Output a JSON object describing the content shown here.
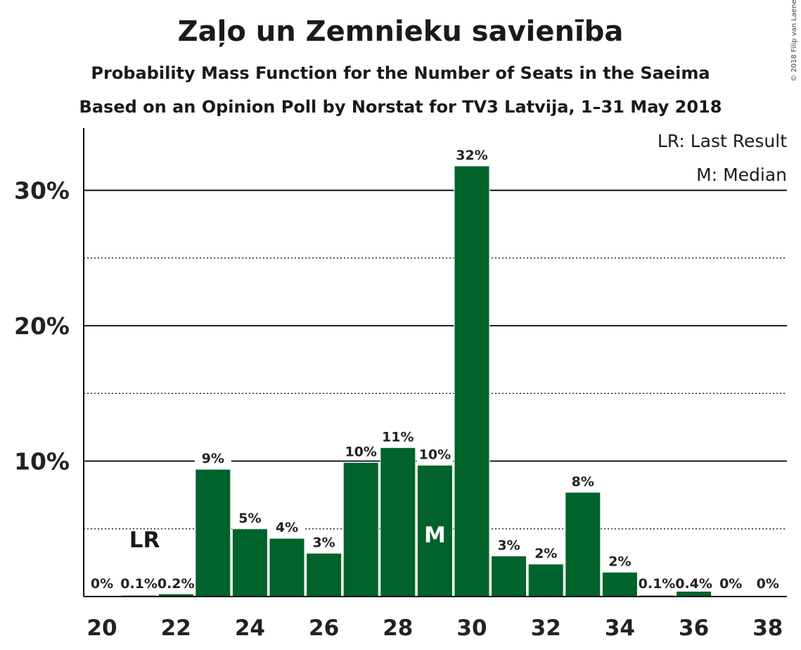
{
  "chart_data": {
    "type": "bar",
    "title": "Zaļo un Zemnieku savienība",
    "subtitle": "Probability Mass Function for the Number of Seats in the Saeima",
    "subtitle2": "Based on an Opinion Poll by Norstat for TV3 Latvija, 1–31 May 2018",
    "copyright": "© 2018 Filip van Laenen",
    "categories": [
      20,
      21,
      22,
      23,
      24,
      25,
      26,
      27,
      28,
      29,
      30,
      31,
      32,
      33,
      34,
      35,
      36,
      37,
      38
    ],
    "values": [
      0,
      0.1,
      0.2,
      9.4,
      5.0,
      4.3,
      3.2,
      9.9,
      11.0,
      9.7,
      31.8,
      3.0,
      2.4,
      7.7,
      1.8,
      0.1,
      0.4,
      0,
      0
    ],
    "value_labels": [
      "0%",
      "0.1%",
      "0.2%",
      "9%",
      "5%",
      "4%",
      "3%",
      "10%",
      "11%",
      "10%",
      "32%",
      "3%",
      "2%",
      "8%",
      "2%",
      "0.1%",
      "0.4%",
      "0%",
      "0%"
    ],
    "x_tick_labels": [
      "20",
      "22",
      "24",
      "26",
      "28",
      "30",
      "32",
      "34",
      "36",
      "38"
    ],
    "y_tick_labels": [
      "10%",
      "20%",
      "30%"
    ],
    "ylim": [
      0,
      34.6
    ],
    "y_major_gridlines": [
      10,
      20,
      30
    ],
    "y_minor_gridlines": [
      5,
      15,
      25
    ],
    "bar_color": "#00632b",
    "last_result": {
      "seat": 21,
      "label": "LR"
    },
    "median": {
      "seat": 29,
      "label": "M"
    },
    "legend": [
      "LR: Last Result",
      "M: Median"
    ],
    "legend_position": "top-right"
  }
}
